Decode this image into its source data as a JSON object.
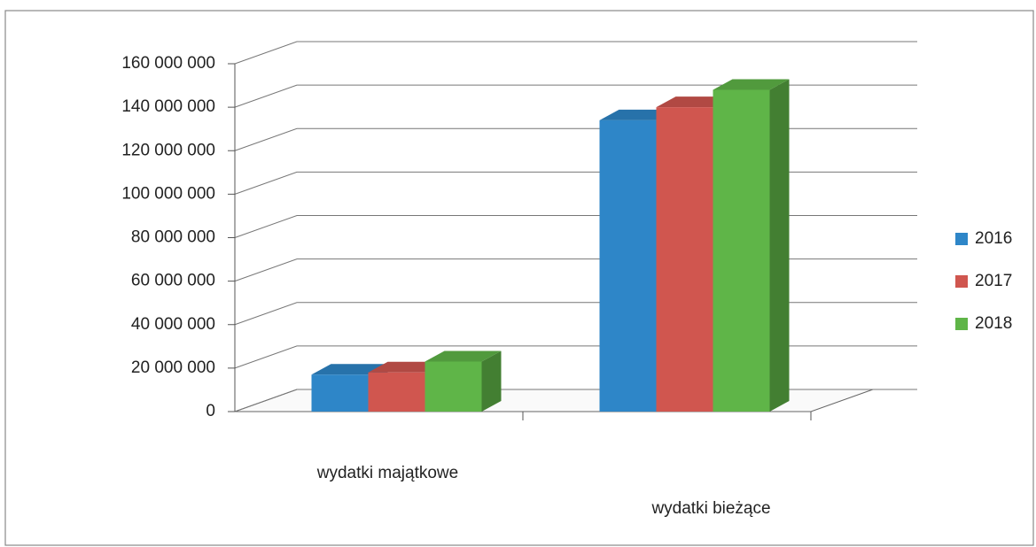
{
  "chart_data": {
    "type": "bar3d",
    "categories": [
      "wydatki majątkowe",
      "wydatki bieżące"
    ],
    "series": [
      {
        "name": "2016",
        "color": "#2e86c8",
        "values": [
          17000000,
          134000000
        ]
      },
      {
        "name": "2017",
        "color": "#d0564f",
        "values": [
          18000000,
          140000000
        ]
      },
      {
        "name": "2018",
        "color": "#5fb548",
        "values": [
          23000000,
          148000000
        ]
      }
    ],
    "ylim": [
      0,
      160000000
    ],
    "yticks": [
      0,
      {
        "value": 20000000,
        "label": "20 000 000"
      },
      {
        "value": 40000000,
        "label": "40 000 000"
      },
      {
        "value": 60000000,
        "label": "60 000 000"
      },
      {
        "value": 80000000,
        "label": "80 000 000"
      },
      {
        "value": 100000000,
        "label": "100 000 000"
      },
      {
        "value": 120000000,
        "label": "120 000 000"
      },
      {
        "value": 140000000,
        "label": "140 000 000"
      },
      {
        "value": 160000000,
        "label": "160 000 000"
      }
    ],
    "grid": true,
    "legend": "right"
  }
}
